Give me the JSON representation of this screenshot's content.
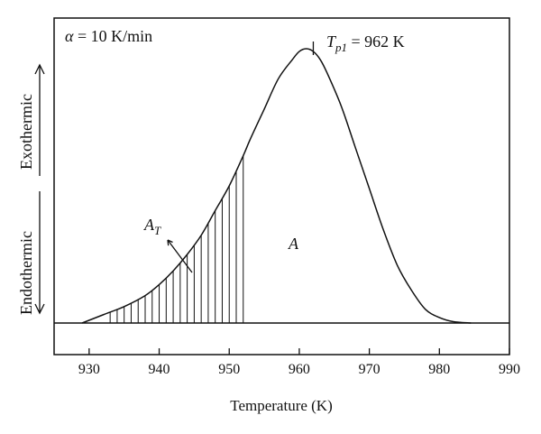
{
  "chart_data": {
    "type": "line",
    "title": "",
    "xlabel": "Temperature (K)",
    "ylabel": "",
    "xlim": [
      925,
      990
    ],
    "ylim": [
      0,
      1
    ],
    "ticks": [
      "930",
      "940",
      "950",
      "960",
      "970",
      "980",
      "990"
    ],
    "tick_values": [
      930,
      940,
      950,
      960,
      970,
      980,
      990
    ],
    "series": [
      {
        "x": [
          929,
          932,
          935,
          938,
          940,
          942,
          944,
          946,
          948,
          950,
          952,
          953,
          955,
          957,
          959,
          960,
          961,
          962,
          963,
          964,
          966,
          968,
          970,
          972,
          974,
          976,
          978,
          980,
          982,
          984.5
        ],
        "y": [
          0.0,
          0.03,
          0.06,
          0.1,
          0.14,
          0.19,
          0.25,
          0.32,
          0.41,
          0.5,
          0.61,
          0.67,
          0.78,
          0.89,
          0.96,
          0.99,
          1.0,
          0.99,
          0.96,
          0.91,
          0.79,
          0.64,
          0.49,
          0.34,
          0.21,
          0.12,
          0.05,
          0.02,
          0.005,
          0.0
        ]
      }
    ],
    "shaded_region": {
      "x_start": 933,
      "x_end": 952.8,
      "hatch": "vertical"
    },
    "annotations": {
      "rate": {
        "symbol": "α",
        "text": " = 10 K/min"
      },
      "peak": {
        "symbol": "T",
        "subscript": "p1",
        "text": " = 962 K",
        "x": 962
      },
      "area_total": {
        "symbol": "A"
      },
      "area_partial": {
        "symbol": "A",
        "subscript": "T"
      }
    },
    "side_labels": {
      "exo": "Exothermic",
      "endo": "Endothermic"
    }
  }
}
